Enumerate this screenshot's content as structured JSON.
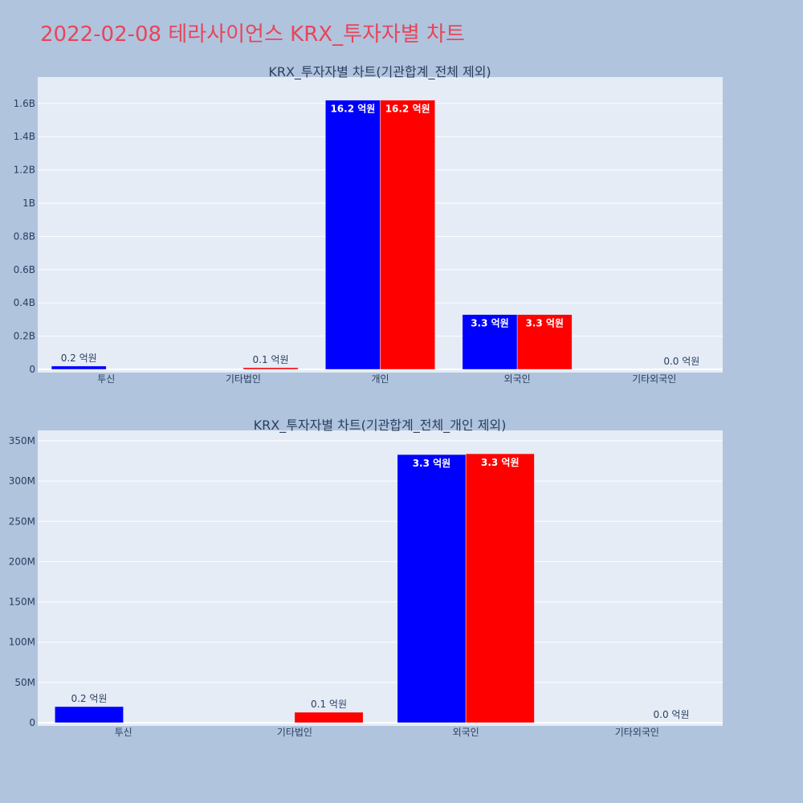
{
  "page": {
    "title": "2022-02-08 테라사이언스 KRX_투자자별 차트",
    "background": "#b0c4de",
    "title_color": "#e8455a"
  },
  "chart_data": [
    {
      "type": "bar",
      "title": "KRX_투자자별 차트(기관합계_전체 제외)",
      "categories": [
        "투신",
        "기타법인",
        "개인",
        "외국인",
        "기타외국인"
      ],
      "series": [
        {
          "color": "#0000ff",
          "values": [
            20000000,
            0,
            1620000000,
            330000000,
            0
          ],
          "labels": [
            "0.2 억원",
            "",
            "16.2 억원",
            "3.3 억원",
            ""
          ]
        },
        {
          "color": "#ff0000",
          "values": [
            0,
            10000000,
            1620000000,
            330000000,
            0
          ],
          "labels": [
            "",
            "0.1 억원",
            "16.2 억원",
            "3.3 억원",
            "0.0 억원"
          ]
        }
      ],
      "ylim": [
        0,
        1720000000
      ],
      "yticks": [
        0,
        200000000,
        400000000,
        600000000,
        800000000,
        1000000000,
        1200000000,
        1400000000,
        1600000000
      ],
      "ytick_labels": [
        "0",
        "0.2B",
        "0.4B",
        "0.6B",
        "0.8B",
        "1B",
        "1.2B",
        "1.4B",
        "1.6B"
      ],
      "grid": true,
      "legend": "none"
    },
    {
      "type": "bar",
      "title": "KRX_투자자별 차트(기관합계_전체_개인 제외)",
      "categories": [
        "투신",
        "기타법인",
        "외국인",
        "기타외국인"
      ],
      "series": [
        {
          "color": "#0000ff",
          "values": [
            20000000,
            0,
            333000000,
            0
          ],
          "labels": [
            "0.2 억원",
            "",
            "3.3 억원",
            ""
          ]
        },
        {
          "color": "#ff0000",
          "values": [
            0,
            13000000,
            334000000,
            0
          ],
          "labels": [
            "",
            "0.1 억원",
            "3.3 억원",
            "0.0 억원"
          ]
        }
      ],
      "ylim": [
        0,
        355000000
      ],
      "yticks": [
        0,
        50000000,
        100000000,
        150000000,
        200000000,
        250000000,
        300000000,
        350000000
      ],
      "ytick_labels": [
        "0",
        "50M",
        "100M",
        "150M",
        "200M",
        "250M",
        "300M",
        "350M"
      ],
      "grid": true,
      "legend": "none"
    }
  ]
}
